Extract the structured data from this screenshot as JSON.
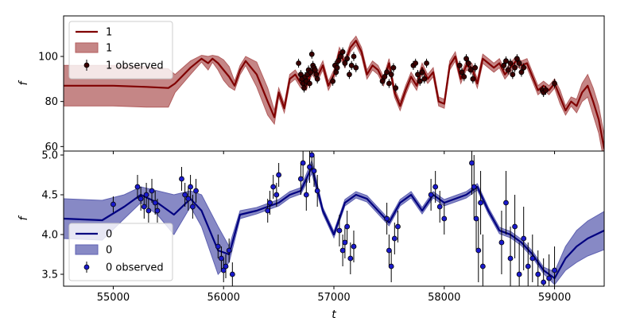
{
  "chart_data": [
    {
      "type": "line",
      "panel": "top",
      "ylabel": "f",
      "xlim": [
        54550,
        59450
      ],
      "ylim": [
        58,
        118
      ],
      "xticks": [
        55000,
        56000,
        57000,
        58000,
        59000
      ],
      "yticks": [
        60,
        80,
        100
      ],
      "legend_position": "top-left",
      "legend": [
        "1",
        "1",
        "1 observed"
      ],
      "colors": {
        "line": "#800000",
        "band": "#b25e5e",
        "points": "#3a0000"
      },
      "model": {
        "name": "1",
        "x": [
          54550,
          55000,
          55300,
          55500,
          55560,
          55700,
          55800,
          55860,
          55900,
          55950,
          56000,
          56050,
          56100,
          56150,
          56200,
          56300,
          56400,
          56460,
          56500,
          56550,
          56600,
          56650,
          56700,
          56750,
          56800,
          56850,
          56900,
          56950,
          57000,
          57050,
          57100,
          57150,
          57200,
          57250,
          57300,
          57350,
          57400,
          57450,
          57500,
          57550,
          57600,
          57650,
          57700,
          57750,
          57800,
          57850,
          57900,
          57950,
          58000,
          58050,
          58100,
          58150,
          58200,
          58250,
          58300,
          58350,
          58400,
          58450,
          58500,
          58550,
          58600,
          58650,
          58700,
          58750,
          58800,
          58850,
          58900,
          58950,
          59000,
          59050,
          59100,
          59150,
          59200,
          59250,
          59300,
          59350,
          59400,
          59450
        ],
        "y": [
          87,
          87,
          86.5,
          86,
          88,
          95,
          99,
          97,
          99,
          97,
          94,
          91,
          87,
          94,
          98,
          92,
          80,
          73,
          84,
          77,
          90,
          92,
          88,
          87,
          94,
          91,
          96,
          87,
          92,
          102,
          97,
          104,
          107,
          102,
          92,
          96,
          94,
          89,
          97,
          84,
          78,
          85,
          91,
          87,
          95,
          90,
          93,
          80,
          79,
          96,
          100,
          90,
          96,
          95,
          88,
          99,
          97,
          95,
          97,
          92,
          95,
          98,
          96,
          97,
          91,
          85,
          87,
          85,
          88,
          82,
          76,
          80,
          78,
          84,
          87,
          80,
          72,
          59
        ],
        "sigma": [
          9,
          9,
          9,
          8.5,
          4,
          3,
          1.5,
          3,
          1.5,
          3,
          4.5,
          4.5,
          2,
          2,
          2,
          5.5,
          6,
          3,
          2,
          2,
          2,
          2,
          2,
          2,
          2,
          2,
          2,
          2,
          2,
          2,
          2,
          2,
          2,
          2,
          2,
          2,
          2,
          2,
          2,
          2,
          2,
          2,
          2,
          2,
          2,
          2,
          2,
          2,
          2,
          2,
          2,
          2,
          2,
          2,
          2,
          2,
          2,
          2,
          2,
          2,
          2,
          2,
          2,
          2,
          2,
          2,
          2,
          2,
          2,
          3,
          2,
          2,
          3,
          4,
          5,
          6,
          6,
          6
        ]
      },
      "band": {
        "name": "1"
      },
      "observed": {
        "name": "1 observed",
        "x": [
          56680,
          56700,
          56710,
          56720,
          56730,
          56740,
          56750,
          56760,
          56770,
          56780,
          56790,
          56800,
          56810,
          56820,
          56830,
          56840,
          56850,
          56990,
          57010,
          57020,
          57030,
          57040,
          57060,
          57080,
          57100,
          57120,
          57140,
          57160,
          57180,
          57200,
          57440,
          57460,
          57480,
          57500,
          57520,
          57540,
          57560,
          57720,
          57740,
          57760,
          57780,
          57800,
          57820,
          57840,
          58140,
          58160,
          58180,
          58200,
          58220,
          58240,
          58260,
          58280,
          58540,
          58560,
          58580,
          58600,
          58620,
          58640,
          58660,
          58680,
          58700,
          58720,
          58890,
          58900,
          58920,
          59000
        ],
        "y": [
          97,
          92,
          90,
          88,
          86,
          91,
          89,
          92,
          94,
          88,
          93,
          101,
          96,
          95,
          94,
          92,
          90,
          89,
          96,
          93,
          95,
          98,
          100,
          102,
          97,
          99,
          92,
          96,
          100,
          95,
          89,
          91,
          93,
          88,
          92,
          95,
          86,
          96,
          97,
          92,
          89,
          93,
          90,
          97,
          96,
          93,
          91,
          99,
          97,
          94,
          90,
          95,
          96,
          98,
          94,
          97,
          92,
          95,
          99,
          97,
          93,
          95,
          85,
          84,
          85,
          88
        ],
        "yerr": [
          2,
          2,
          2,
          2,
          2,
          2,
          2,
          2,
          2,
          2,
          2,
          2,
          2,
          2,
          2,
          2,
          2,
          2,
          2,
          2,
          2,
          2,
          2,
          2,
          2,
          2,
          2,
          2,
          2,
          2,
          2,
          2,
          2,
          2,
          2,
          2,
          2,
          2,
          2,
          2,
          2,
          2,
          2,
          2,
          2,
          2,
          2,
          2,
          2,
          2,
          2,
          2,
          2,
          2,
          2,
          2,
          2,
          2,
          2,
          2,
          2,
          2,
          2,
          2,
          2,
          2
        ]
      }
    },
    {
      "type": "line",
      "panel": "bottom",
      "xlabel": "t",
      "ylabel": "f",
      "xlim": [
        54550,
        59450
      ],
      "ylim": [
        3.35,
        5.05
      ],
      "xticks": [
        55000,
        56000,
        57000,
        58000,
        59000
      ],
      "yticks": [
        3.5,
        4.0,
        4.5,
        5.0
      ],
      "legend_position": "bottom-left",
      "legend": [
        "0",
        "0",
        "0 observed"
      ],
      "colors": {
        "line": "#000080",
        "band": "#5f62b2",
        "points": "#1a1acc"
      },
      "model": {
        "name": "0",
        "x": [
          54550,
          54900,
          55100,
          55250,
          55400,
          55550,
          55700,
          55800,
          55950,
          56050,
          56150,
          56300,
          56400,
          56500,
          56600,
          56700,
          56800,
          56900,
          57000,
          57100,
          57200,
          57300,
          57400,
          57500,
          57600,
          57700,
          57800,
          57900,
          58000,
          58100,
          58200,
          58300,
          58400,
          58500,
          58600,
          58700,
          58800,
          58900,
          59000,
          59100,
          59200,
          59300,
          59450
        ],
        "y": [
          4.2,
          4.18,
          4.35,
          4.5,
          4.4,
          4.25,
          4.45,
          4.3,
          3.8,
          3.75,
          4.25,
          4.3,
          4.35,
          4.4,
          4.5,
          4.55,
          4.85,
          4.3,
          4.0,
          4.4,
          4.5,
          4.45,
          4.3,
          4.15,
          4.4,
          4.5,
          4.3,
          4.5,
          4.4,
          4.45,
          4.5,
          4.6,
          4.3,
          4.05,
          4.0,
          3.9,
          3.75,
          3.55,
          3.45,
          3.7,
          3.85,
          3.95,
          4.05
        ],
        "sigma": [
          0.25,
          0.25,
          0.15,
          0.1,
          0.15,
          0.25,
          0.1,
          0.2,
          0.3,
          0.1,
          0.05,
          0.04,
          0.04,
          0.04,
          0.04,
          0.04,
          0.08,
          0.04,
          0.04,
          0.04,
          0.04,
          0.04,
          0.04,
          0.04,
          0.04,
          0.04,
          0.04,
          0.04,
          0.04,
          0.04,
          0.04,
          0.04,
          0.04,
          0.04,
          0.04,
          0.04,
          0.04,
          0.04,
          0.08,
          0.15,
          0.2,
          0.22,
          0.24
        ]
      },
      "band": {
        "name": "0"
      },
      "observed": {
        "name": "0 observed",
        "x": [
          55000,
          55220,
          55250,
          55280,
          55300,
          55320,
          55350,
          55380,
          55400,
          55620,
          55650,
          55680,
          55700,
          55720,
          55750,
          55950,
          55980,
          56000,
          56020,
          56050,
          56080,
          56400,
          56420,
          56450,
          56480,
          56500,
          56700,
          56720,
          56750,
          56780,
          56800,
          56820,
          56850,
          57050,
          57080,
          57100,
          57120,
          57150,
          57180,
          57480,
          57500,
          57520,
          57550,
          57580,
          57880,
          57920,
          57960,
          58000,
          58250,
          58270,
          58290,
          58310,
          58330,
          58350,
          58520,
          58560,
          58600,
          58640,
          58680,
          58720,
          58760,
          58800,
          58850,
          58900,
          58950,
          59000
        ],
        "y": [
          4.38,
          4.6,
          4.45,
          4.35,
          4.5,
          4.3,
          4.55,
          4.4,
          4.3,
          4.7,
          4.5,
          4.45,
          4.6,
          4.35,
          4.55,
          3.85,
          3.7,
          3.55,
          3.6,
          3.8,
          3.5,
          4.3,
          4.4,
          4.6,
          4.5,
          4.75,
          4.7,
          4.9,
          4.5,
          4.85,
          5.0,
          4.8,
          4.55,
          4.05,
          3.8,
          3.9,
          4.1,
          3.7,
          3.85,
          4.2,
          3.8,
          3.6,
          3.95,
          4.1,
          4.5,
          4.6,
          4.35,
          4.2,
          4.9,
          4.6,
          4.2,
          3.8,
          4.4,
          3.6,
          3.9,
          4.4,
          3.7,
          4.1,
          3.5,
          3.95,
          3.6,
          3.7,
          3.5,
          3.4,
          3.45,
          3.55
        ],
        "yerr": [
          0.1,
          0.15,
          0.15,
          0.15,
          0.15,
          0.15,
          0.15,
          0.15,
          0.15,
          0.15,
          0.15,
          0.15,
          0.15,
          0.15,
          0.15,
          0.15,
          0.15,
          0.15,
          0.15,
          0.15,
          0.15,
          0.15,
          0.15,
          0.15,
          0.15,
          0.15,
          0.2,
          0.2,
          0.2,
          0.2,
          0.2,
          0.2,
          0.2,
          0.2,
          0.2,
          0.2,
          0.2,
          0.2,
          0.2,
          0.2,
          0.2,
          0.2,
          0.2,
          0.2,
          0.2,
          0.2,
          0.2,
          0.2,
          0.4,
          0.4,
          0.4,
          0.4,
          0.4,
          0.4,
          0.4,
          0.4,
          0.4,
          0.4,
          0.4,
          0.4,
          0.3,
          0.3,
          0.3,
          0.3,
          0.3,
          0.3
        ]
      }
    }
  ]
}
